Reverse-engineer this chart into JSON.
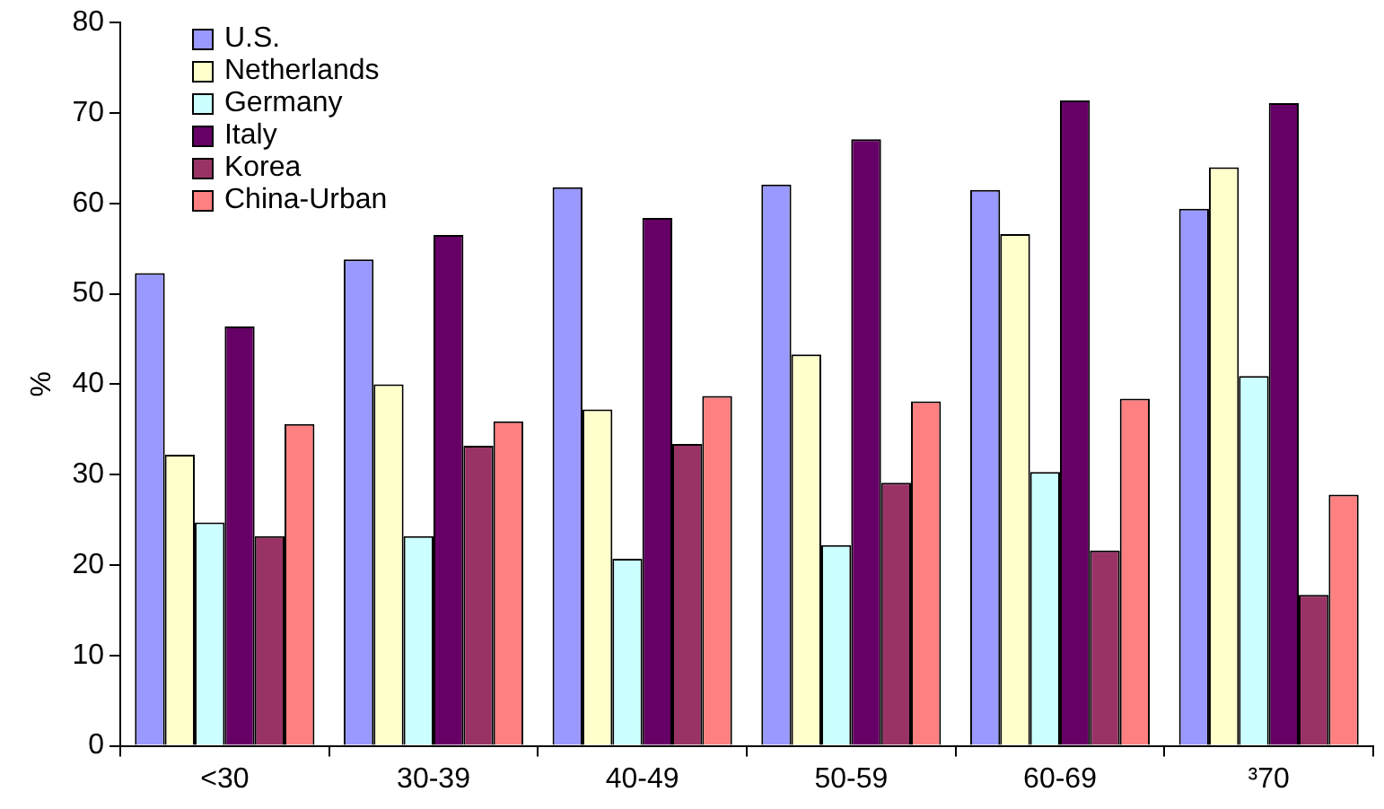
{
  "chart_data": {
    "type": "bar",
    "ylabel": "%",
    "categories": [
      "<30",
      "30-39",
      "40-49",
      "50-59",
      "60-69",
      "³70"
    ],
    "series": [
      {
        "name": "U.S.",
        "color": "#9999ff",
        "values": [
          52.3,
          53.8,
          61.8,
          62.1,
          61.5,
          59.4
        ]
      },
      {
        "name": "Netherlands",
        "color": "#ffffcc",
        "values": [
          32.2,
          40,
          37.2,
          43.3,
          56.6,
          64
        ]
      },
      {
        "name": "Germany",
        "color": "#ccffff",
        "values": [
          24.7,
          23.2,
          20.7,
          22.2,
          30.3,
          40.9
        ]
      },
      {
        "name": "Italy",
        "color": "#660066",
        "values": [
          46.4,
          56.5,
          58.4,
          67.1,
          71.4,
          71.1
        ]
      },
      {
        "name": "Korea",
        "color": "#993366",
        "values": [
          23.2,
          33.2,
          33.4,
          29.1,
          21.6,
          16.7
        ]
      },
      {
        "name": "China-Urban",
        "color": "#ff8080",
        "values": [
          35.6,
          35.9,
          38.7,
          38.1,
          38.4,
          27.8
        ]
      }
    ],
    "ylim": [
      0,
      80
    ],
    "yticks": [
      0,
      10,
      20,
      30,
      40,
      50,
      60,
      70,
      80
    ],
    "grid": false,
    "legend": "top left"
  }
}
